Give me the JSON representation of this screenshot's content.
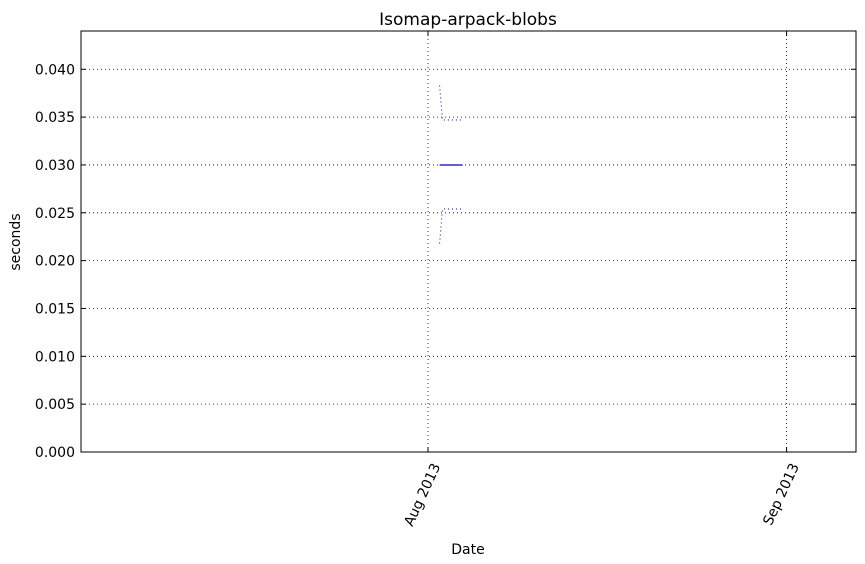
{
  "chart_data": {
    "type": "line",
    "title": "Isomap-arpack-blobs",
    "xlabel": "Date",
    "ylabel": "seconds",
    "ylim": [
      0,
      0.044
    ],
    "xlim": [
      "2013-07-02",
      "2013-09-07"
    ],
    "x_ticks": [
      {
        "date": "2013-08-01",
        "label": "Aug 2013"
      },
      {
        "date": "2013-09-01",
        "label": "Sep 2013"
      }
    ],
    "y_ticks": [
      "0.000",
      "0.005",
      "0.010",
      "0.015",
      "0.020",
      "0.025",
      "0.030",
      "0.035",
      "0.040"
    ],
    "grid": true,
    "series": [
      {
        "style": "solid",
        "color": "#0000cc",
        "x": [
          "2013-08-02",
          "2013-08-03",
          "2013-08-04"
        ],
        "y": [
          0.03,
          0.03,
          0.03
        ]
      },
      {
        "style": "dotted",
        "color": "#0000cc",
        "x": [
          "2013-08-02",
          "2013-08-02.25",
          "2013-08-04"
        ],
        "y": [
          0.0383,
          0.0347,
          0.0347
        ]
      },
      {
        "style": "dotted",
        "color": "#0000cc",
        "x": [
          "2013-08-02",
          "2013-08-02.25",
          "2013-08-04"
        ],
        "y": [
          0.0218,
          0.0254,
          0.0254
        ]
      }
    ]
  }
}
